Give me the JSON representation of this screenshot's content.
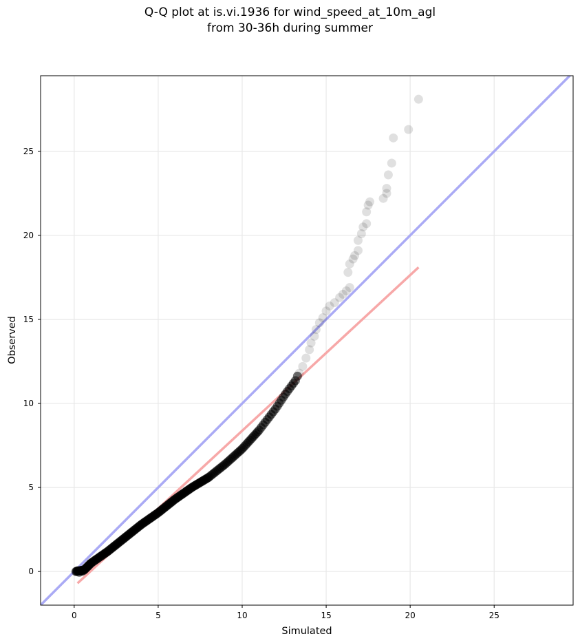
{
  "chart_data": {
    "type": "scatter",
    "title_lines": [
      "Q-Q plot at is.vi.1936 for wind_speed_at_10m_agl",
      "from 30-36h during summer"
    ],
    "xlabel": "Simulated",
    "ylabel": "Observed",
    "xlim": [
      -2,
      29.7
    ],
    "ylim": [
      -2,
      29.5
    ],
    "xticks": [
      0,
      5,
      10,
      15,
      20,
      25
    ],
    "yticks": [
      0,
      5,
      10,
      15,
      20,
      25
    ],
    "grid": true,
    "reference_lines": [
      {
        "kind": "identity",
        "color": "#aaaaf5",
        "points": [
          [
            -2,
            -2
          ],
          [
            29.7,
            29.7
          ]
        ]
      },
      {
        "kind": "fit",
        "color": "#f7a8a8",
        "points": [
          [
            0.2,
            -0.7
          ],
          [
            20.5,
            18.1
          ]
        ]
      }
    ],
    "point_color": "#000000",
    "quantile_curve": [
      [
        0.1,
        0.0
      ],
      [
        0.6,
        0.1
      ],
      [
        1.0,
        0.5
      ],
      [
        2.0,
        1.2
      ],
      [
        3.0,
        2.0
      ],
      [
        4.0,
        2.8
      ],
      [
        5.0,
        3.5
      ],
      [
        6.0,
        4.3
      ],
      [
        7.0,
        5.0
      ],
      [
        8.0,
        5.6
      ],
      [
        9.0,
        6.4
      ],
      [
        10.0,
        7.3
      ],
      [
        11.0,
        8.4
      ],
      [
        12.0,
        9.7
      ],
      [
        12.6,
        10.6
      ],
      [
        13.2,
        11.4
      ],
      [
        13.6,
        12.4
      ],
      [
        14.0,
        13.3
      ],
      [
        14.4,
        14.3
      ],
      [
        14.8,
        15.2
      ],
      [
        15.4,
        15.9
      ],
      [
        16.0,
        16.6
      ],
      [
        16.4,
        17.8
      ],
      [
        16.8,
        19.0
      ],
      [
        17.2,
        20.6
      ],
      [
        17.6,
        22.0
      ],
      [
        18.4,
        22.2
      ],
      [
        18.8,
        23.6
      ],
      [
        18.9,
        24.3
      ],
      [
        19.0,
        25.8
      ],
      [
        19.9,
        26.3
      ],
      [
        20.5,
        28.1
      ]
    ],
    "tail_points": [
      [
        13.4,
        11.8
      ],
      [
        13.6,
        12.2
      ],
      [
        13.8,
        12.7
      ],
      [
        14.0,
        13.2
      ],
      [
        14.1,
        13.6
      ],
      [
        14.3,
        14.0
      ],
      [
        14.4,
        14.4
      ],
      [
        14.6,
        14.8
      ],
      [
        14.8,
        15.1
      ],
      [
        15.0,
        15.5
      ],
      [
        15.2,
        15.8
      ],
      [
        15.5,
        16.0
      ],
      [
        15.8,
        16.3
      ],
      [
        16.0,
        16.5
      ],
      [
        16.2,
        16.7
      ],
      [
        16.4,
        16.9
      ],
      [
        16.3,
        17.8
      ],
      [
        16.4,
        18.3
      ],
      [
        16.6,
        18.6
      ],
      [
        16.7,
        18.8
      ],
      [
        16.9,
        19.1
      ],
      [
        16.9,
        19.7
      ],
      [
        17.1,
        20.1
      ],
      [
        17.2,
        20.5
      ],
      [
        17.4,
        20.7
      ],
      [
        17.4,
        21.4
      ],
      [
        17.5,
        21.8
      ],
      [
        17.6,
        22.0
      ],
      [
        18.4,
        22.2
      ],
      [
        18.6,
        22.5
      ],
      [
        18.6,
        22.8
      ],
      [
        18.7,
        23.6
      ],
      [
        18.9,
        24.3
      ],
      [
        19.0,
        25.8
      ],
      [
        19.9,
        26.3
      ],
      [
        20.5,
        28.1
      ]
    ]
  }
}
